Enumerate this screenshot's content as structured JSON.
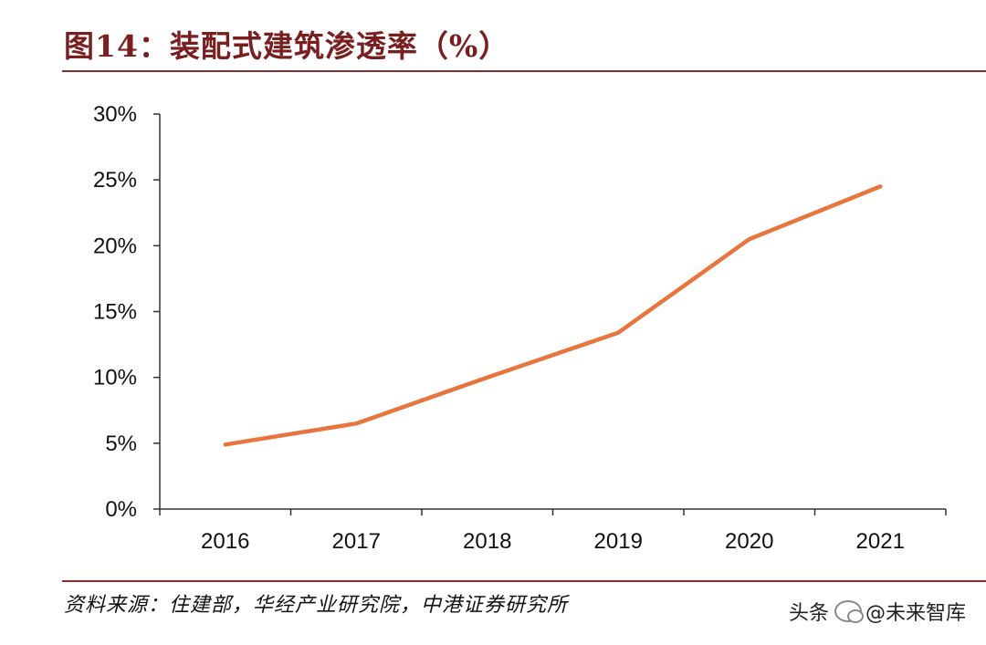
{
  "chart_data": {
    "type": "line",
    "title": "图14：装配式建筑渗透率（%）",
    "categories": [
      "2016",
      "2017",
      "2018",
      "2019",
      "2020",
      "2021"
    ],
    "series": [
      {
        "name": "装配式建筑渗透率",
        "values": [
          4.9,
          6.5,
          10.0,
          13.4,
          20.5,
          24.5
        ],
        "color": "#e8753d"
      }
    ],
    "ylim": [
      0,
      30
    ],
    "yticks": [
      0,
      5,
      10,
      15,
      20,
      25,
      30
    ],
    "ytick_labels": [
      "0%",
      "5%",
      "10%",
      "15%",
      "20%",
      "25%",
      "30%"
    ],
    "xlabel": "",
    "ylabel": "",
    "grid": false,
    "legend": "none"
  },
  "footer": {
    "source": "资料来源：住建部，华经产业研究院，中港证券研究所",
    "watermark_prefix": "头条",
    "watermark_handle": "@未来智库"
  }
}
